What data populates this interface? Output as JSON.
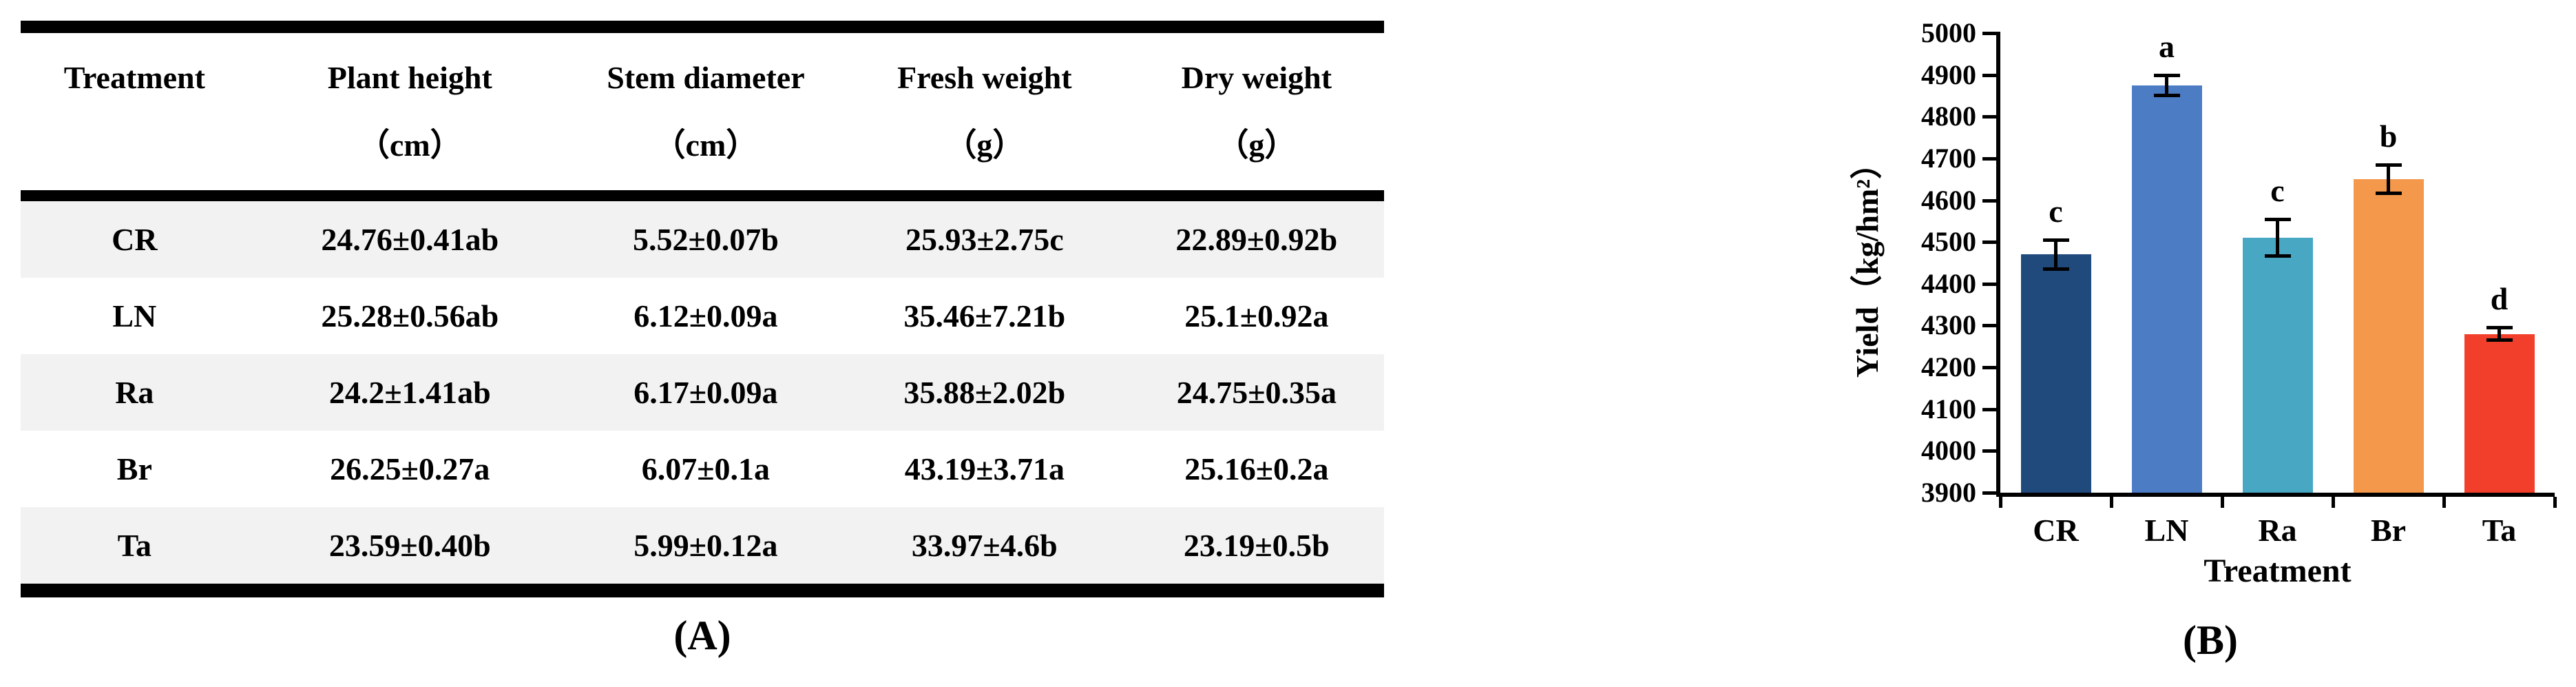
{
  "figure": {
    "panel_a_label": "(A)",
    "panel_b_label": "(B)"
  },
  "table": {
    "columns": [
      {
        "title": "Treatment",
        "unit": ""
      },
      {
        "title": "Plant height",
        "unit": "（cm）"
      },
      {
        "title": "Stem diameter",
        "unit": "（cm）"
      },
      {
        "title": "Fresh weight",
        "unit": "（g）"
      },
      {
        "title": "Dry weight",
        "unit": "（g）"
      }
    ],
    "rows": [
      [
        "CR",
        "24.76±0.41ab",
        "5.52±0.07b",
        "25.93±2.75c",
        "22.89±0.92b"
      ],
      [
        "LN",
        "25.28±0.56ab",
        "6.12±0.09a",
        "35.46±7.21b",
        "25.1±0.92a"
      ],
      [
        "Ra",
        "24.2±1.41ab",
        "6.17±0.09a",
        "35.88±2.02b",
        "24.75±0.35a"
      ],
      [
        "Br",
        "26.25±0.27a",
        "6.07±0.1a",
        "43.19±3.71a",
        "25.16±0.2a"
      ],
      [
        "Ta",
        "23.59±0.40b",
        "5.99±0.12a",
        "33.97±4.6b",
        "23.19±0.5b"
      ]
    ],
    "stripe_color": "#F2F2F2",
    "rule_color": "#000000"
  },
  "chart_data": {
    "type": "bar",
    "title": "",
    "xlabel": "Treatment",
    "ylabel": "Yield（kg/hm²）",
    "categories": [
      "CR",
      "LN",
      "Ra",
      "Br",
      "Ta"
    ],
    "values": [
      4470,
      4875,
      4510,
      4650,
      4280
    ],
    "errors": [
      35,
      25,
      45,
      35,
      15
    ],
    "sig_letters": [
      "c",
      "a",
      "c",
      "b",
      "d"
    ],
    "bar_colors": [
      "#20497C",
      "#4C7CC4",
      "#48A8C4",
      "#F4984C",
      "#F23F2B"
    ],
    "ylim": [
      3900,
      5000
    ],
    "yticks": [
      3900,
      4000,
      4100,
      4200,
      4300,
      4400,
      4500,
      4600,
      4700,
      4800,
      4900,
      5000
    ],
    "grid": "off",
    "legend": "none",
    "error_bar_color": "#000000"
  }
}
